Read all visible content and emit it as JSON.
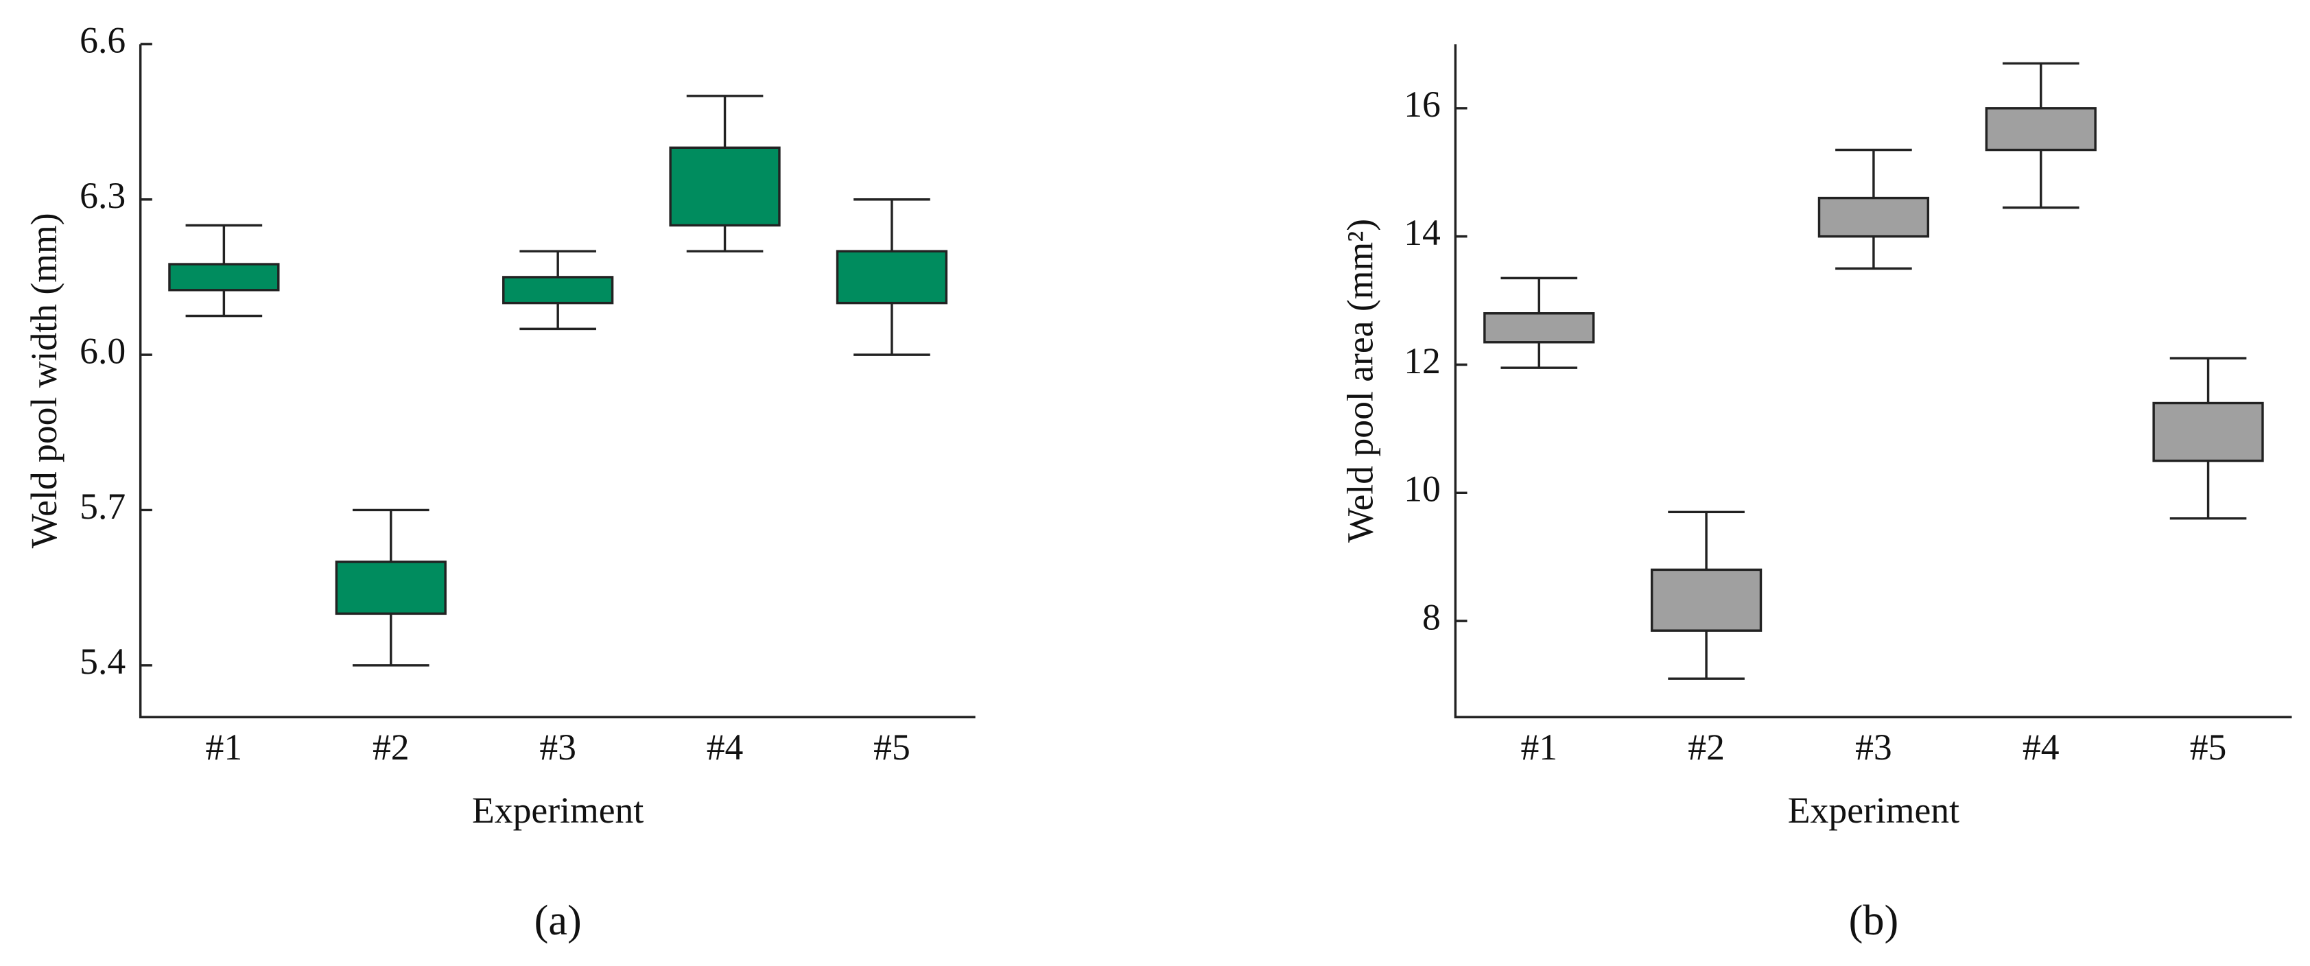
{
  "chart_data": [
    {
      "type": "box",
      "panel_label": "(a)",
      "y_label": "Weld pool width (mm)",
      "x_label": "Experiment",
      "categories": [
        "#1",
        "#2",
        "#3",
        "#4",
        "#5"
      ],
      "color": "#008c5e",
      "low": [
        6.075,
        5.4,
        6.05,
        6.2,
        6.0
      ],
      "q1": [
        6.125,
        5.5,
        6.1,
        6.25,
        6.1
      ],
      "q3": [
        6.175,
        5.6,
        6.15,
        6.4,
        6.2
      ],
      "high": [
        6.25,
        5.7,
        6.2,
        6.5,
        6.3
      ],
      "ylim": [
        5.3,
        6.6
      ],
      "yticks": [
        5.4,
        5.7,
        {
          "value": 6,
          "label": "6.0"
        },
        6.3,
        6.6
      ]
    },
    {
      "type": "box",
      "panel_label": "(b)",
      "y_label": "Weld pool area (mm²)",
      "x_label": "Experiment",
      "categories": [
        "#1",
        "#2",
        "#3",
        "#4",
        "#5"
      ],
      "color": "#a0a0a0",
      "low": [
        11.95,
        7.1,
        13.5,
        14.45,
        9.6
      ],
      "q1": [
        12.35,
        7.85,
        14.0,
        15.35,
        10.5
      ],
      "q3": [
        12.8,
        8.8,
        14.6,
        16.0,
        11.4
      ],
      "high": [
        13.35,
        9.7,
        15.35,
        16.7,
        12.1
      ],
      "ylim": [
        6.5,
        17
      ],
      "yticks": [
        8,
        10,
        12,
        14,
        16
      ]
    }
  ]
}
